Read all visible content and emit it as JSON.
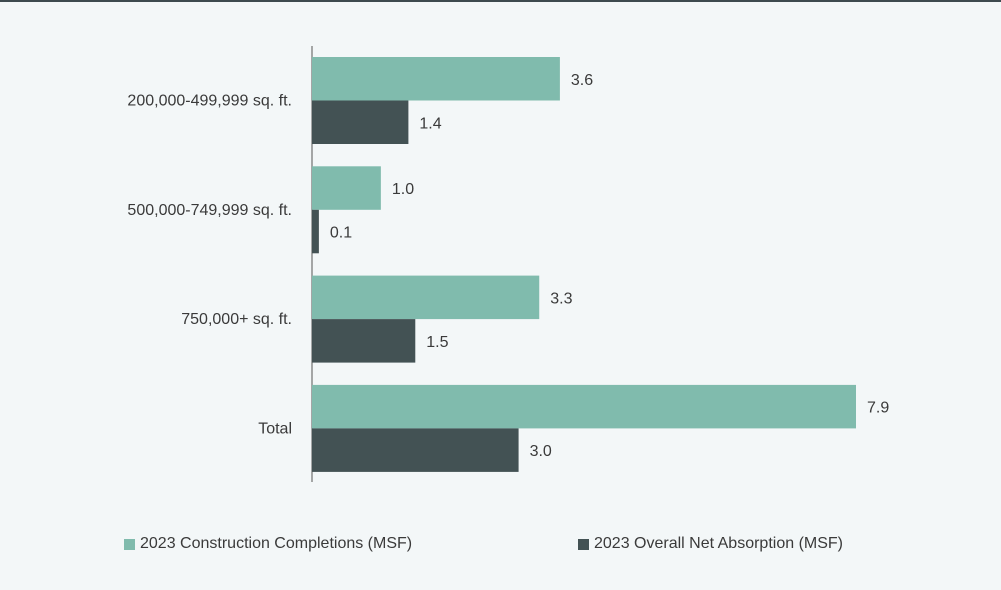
{
  "chart_data": {
    "type": "bar",
    "orientation": "horizontal",
    "categories": [
      "200,000-499,999 sq. ft.",
      "500,000-749,999 sq. ft.",
      "750,000+ sq. ft.",
      "Total"
    ],
    "series": [
      {
        "name": "2023 Construction Completions (MSF)",
        "values": [
          3.6,
          1.0,
          3.3,
          7.9
        ],
        "labels": [
          "3.6",
          "1.0",
          "3.3",
          "7.9"
        ],
        "color": "#80bbad"
      },
      {
        "name": "2023 Overall Net Absorption (MSF)",
        "values": [
          1.4,
          0.1,
          1.5,
          3.0
        ],
        "labels": [
          "1.4",
          "0.1",
          "1.5",
          "3.0"
        ],
        "color": "#435254"
      }
    ],
    "title": "",
    "xlabel": "",
    "ylabel": "",
    "xlim": [
      0,
      9.0
    ],
    "grid": false,
    "legend_position": "bottom"
  },
  "colors": {
    "background": "#f3f7f8",
    "axis": "#555555",
    "text": "#3a3a3a"
  }
}
